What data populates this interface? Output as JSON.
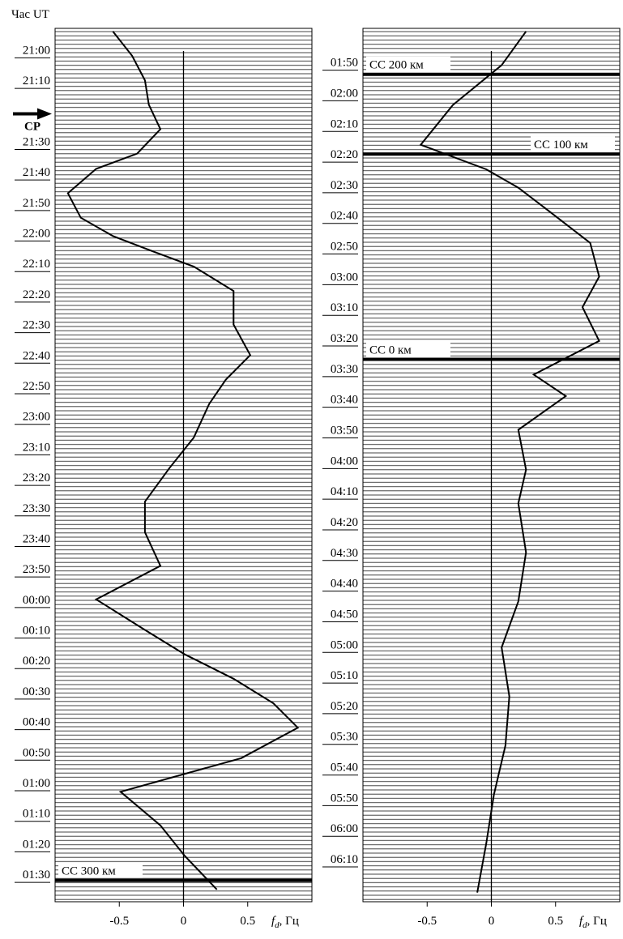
{
  "chart_data": [
    {
      "type": "line",
      "ylabel": "Час UT",
      "ylim": [
        -7,
        279
      ],
      "xlim": [
        -1,
        1
      ],
      "xticks": [
        -0.5,
        0,
        0.5
      ],
      "xlabel_symbol": "f",
      "xlabel_sub": "d",
      "xlabel_unit": ", Гц",
      "yticks": [
        {
          "value": 0,
          "label": "21:00"
        },
        {
          "value": 10,
          "label": "21:10"
        },
        {
          "value": 30,
          "label": "21:30"
        },
        {
          "value": 40,
          "label": "21:40"
        },
        {
          "value": 50,
          "label": "21:50"
        },
        {
          "value": 60,
          "label": "22:00"
        },
        {
          "value": 70,
          "label": "22:10"
        },
        {
          "value": 80,
          "label": "22:20"
        },
        {
          "value": 90,
          "label": "22:30"
        },
        {
          "value": 100,
          "label": "22:40"
        },
        {
          "value": 110,
          "label": "22:50"
        },
        {
          "value": 120,
          "label": "23:00"
        },
        {
          "value": 130,
          "label": "23:10"
        },
        {
          "value": 140,
          "label": "23:20"
        },
        {
          "value": 150,
          "label": "23:30"
        },
        {
          "value": 160,
          "label": "23:40"
        },
        {
          "value": 170,
          "label": "23:50"
        },
        {
          "value": 180,
          "label": "00:00"
        },
        {
          "value": 190,
          "label": "00:10"
        },
        {
          "value": 200,
          "label": "00:20"
        },
        {
          "value": 210,
          "label": "00:30"
        },
        {
          "value": 220,
          "label": "00:40"
        },
        {
          "value": 230,
          "label": "00:50"
        },
        {
          "value": 240,
          "label": "01:00"
        },
        {
          "value": 250,
          "label": "01:10"
        },
        {
          "value": 260,
          "label": "01:20"
        },
        {
          "value": 270,
          "label": "01:30"
        }
      ],
      "arrow": {
        "text": "CP",
        "y": 21
      },
      "markers": [
        {
          "text": "CC 300 км",
          "y": 272
        }
      ],
      "series": [
        {
          "color": "#000000",
          "x": [
            -6,
            2,
            10,
            18,
            26,
            34,
            39,
            47,
            55,
            61,
            66,
            71,
            79,
            90,
            100,
            108,
            116,
            127,
            137,
            148,
            158,
            169,
            180,
            190,
            198,
            206,
            214,
            222,
            232,
            243,
            254,
            264,
            275
          ],
          "values": [
            -0.55,
            -0.4,
            -0.3,
            -0.27,
            -0.18,
            -0.36,
            -0.68,
            -0.9,
            -0.8,
            -0.55,
            -0.24,
            0.08,
            0.39,
            0.39,
            0.52,
            0.33,
            0.2,
            0.08,
            -0.11,
            -0.3,
            -0.3,
            -0.18,
            -0.68,
            -0.3,
            0.01,
            0.39,
            0.7,
            0.89,
            0.45,
            -0.49,
            -0.18,
            0.01,
            0.26
          ]
        }
      ]
    },
    {
      "type": "line",
      "ylim": [
        279,
        564
      ],
      "xlim": [
        -1,
        1
      ],
      "xticks": [
        -0.5,
        0,
        0.5
      ],
      "xlabel_symbol": "f",
      "xlabel_sub": "d",
      "xlabel_unit": ", Гц",
      "yticks": [
        {
          "value": 290,
          "label": "01:50"
        },
        {
          "value": 300,
          "label": "02:00"
        },
        {
          "value": 310,
          "label": "02:10"
        },
        {
          "value": 320,
          "label": "02:20"
        },
        {
          "value": 330,
          "label": "02:30"
        },
        {
          "value": 340,
          "label": "02:40"
        },
        {
          "value": 350,
          "label": "02:50"
        },
        {
          "value": 360,
          "label": "03:00"
        },
        {
          "value": 370,
          "label": "03:10"
        },
        {
          "value": 380,
          "label": "03:20"
        },
        {
          "value": 390,
          "label": "03:30"
        },
        {
          "value": 400,
          "label": "03:40"
        },
        {
          "value": 410,
          "label": "03:50"
        },
        {
          "value": 420,
          "label": "04:00"
        },
        {
          "value": 430,
          "label": "04:10"
        },
        {
          "value": 440,
          "label": "04:20"
        },
        {
          "value": 450,
          "label": "04:30"
        },
        {
          "value": 460,
          "label": "04:40"
        },
        {
          "value": 470,
          "label": "04:50"
        },
        {
          "value": 480,
          "label": "05:00"
        },
        {
          "value": 490,
          "label": "05:10"
        },
        {
          "value": 500,
          "label": "05:20"
        },
        {
          "value": 510,
          "label": "05:30"
        },
        {
          "value": 520,
          "label": "05:40"
        },
        {
          "value": 530,
          "label": "05:50"
        },
        {
          "value": 540,
          "label": "06:00"
        },
        {
          "value": 550,
          "label": "06:10"
        }
      ],
      "markers": [
        {
          "text": "CC 200 км",
          "y": 294,
          "side": "left"
        },
        {
          "text": "CC 100 км",
          "y": 320,
          "side": "right"
        },
        {
          "text": "CC 0 км",
          "y": 387,
          "side": "left"
        }
      ],
      "series": [
        {
          "color": "#000000",
          "x": [
            280,
            291,
            304,
            317,
            325,
            331,
            339,
            349,
            360,
            370,
            381,
            392,
            399,
            410,
            423,
            434,
            450,
            466,
            481,
            497,
            513,
            529,
            545,
            561
          ],
          "values": [
            0.27,
            0.08,
            -0.3,
            -0.55,
            -0.04,
            0.21,
            0.46,
            0.77,
            0.84,
            0.71,
            0.84,
            0.33,
            0.58,
            0.21,
            0.27,
            0.21,
            0.27,
            0.21,
            0.08,
            0.14,
            0.11,
            0.02,
            -0.04,
            -0.11
          ]
        }
      ]
    }
  ]
}
